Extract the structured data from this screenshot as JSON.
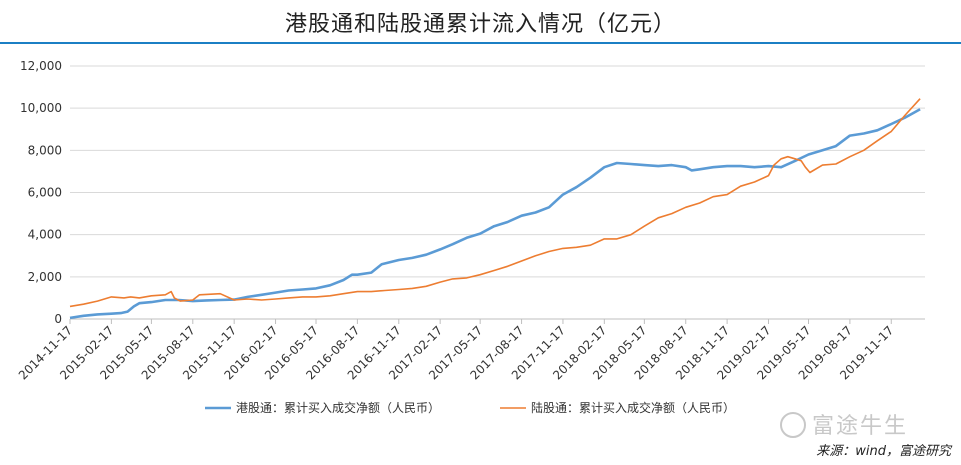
{
  "chart_data": {
    "type": "line",
    "title": "港股通和陆股通累计流入情况（亿元）",
    "ylim": [
      0,
      12000
    ],
    "y_ticks": [
      "0",
      "2,000",
      "4,000",
      "6,000",
      "8,000",
      "10,000",
      "12,000"
    ],
    "x_range": [
      "2014-11-17",
      "2020-01-31"
    ],
    "x_ticks": [
      "2014-11-17",
      "2015-02-17",
      "2015-05-17",
      "2015-08-17",
      "2015-11-17",
      "2016-02-17",
      "2016-05-17",
      "2016-08-17",
      "2016-11-17",
      "2017-02-17",
      "2017-05-17",
      "2017-08-17",
      "2017-11-17",
      "2018-02-17",
      "2018-05-17",
      "2018-08-17",
      "2018-11-17",
      "2019-02-17",
      "2019-05-17",
      "2019-08-17",
      "2019-11-17"
    ],
    "grid": "horizontal",
    "legend_position": "bottom",
    "series": [
      {
        "name": "港股通：累计买入成交净额（人民币）",
        "color": "#5b9bd5",
        "points": [
          [
            "2014-11-17",
            50
          ],
          [
            "2014-12-17",
            150
          ],
          [
            "2015-01-17",
            220
          ],
          [
            "2015-02-17",
            250
          ],
          [
            "2015-03-10",
            280
          ],
          [
            "2015-03-25",
            350
          ],
          [
            "2015-04-08",
            600
          ],
          [
            "2015-04-20",
            750
          ],
          [
            "2015-05-17",
            800
          ],
          [
            "2015-06-17",
            900
          ],
          [
            "2015-07-17",
            900
          ],
          [
            "2015-08-17",
            850
          ],
          [
            "2015-09-17",
            880
          ],
          [
            "2015-10-17",
            900
          ],
          [
            "2015-11-17",
            920
          ],
          [
            "2015-12-17",
            1050
          ],
          [
            "2016-01-17",
            1150
          ],
          [
            "2016-02-17",
            1250
          ],
          [
            "2016-03-17",
            1350
          ],
          [
            "2016-04-17",
            1400
          ],
          [
            "2016-05-17",
            1450
          ],
          [
            "2016-06-17",
            1600
          ],
          [
            "2016-07-17",
            1850
          ],
          [
            "2016-08-05",
            2100
          ],
          [
            "2016-08-17",
            2100
          ],
          [
            "2016-09-17",
            2200
          ],
          [
            "2016-10-10",
            2600
          ],
          [
            "2016-11-17",
            2800
          ],
          [
            "2016-12-17",
            2900
          ],
          [
            "2017-01-17",
            3050
          ],
          [
            "2017-02-17",
            3300
          ],
          [
            "2017-03-17",
            3550
          ],
          [
            "2017-04-17",
            3850
          ],
          [
            "2017-05-17",
            4050
          ],
          [
            "2017-06-17",
            4400
          ],
          [
            "2017-07-17",
            4600
          ],
          [
            "2017-08-17",
            4900
          ],
          [
            "2017-09-17",
            5050
          ],
          [
            "2017-10-17",
            5300
          ],
          [
            "2017-11-17",
            5900
          ],
          [
            "2017-12-17",
            6250
          ],
          [
            "2018-01-17",
            6700
          ],
          [
            "2018-02-17",
            7200
          ],
          [
            "2018-03-17",
            7400
          ],
          [
            "2018-04-17",
            7350
          ],
          [
            "2018-05-17",
            7300
          ],
          [
            "2018-06-17",
            7250
          ],
          [
            "2018-07-17",
            7300
          ],
          [
            "2018-08-17",
            7200
          ],
          [
            "2018-08-30",
            7050
          ],
          [
            "2018-09-17",
            7100
          ],
          [
            "2018-10-17",
            7200
          ],
          [
            "2018-11-17",
            7250
          ],
          [
            "2018-12-17",
            7250
          ],
          [
            "2019-01-17",
            7200
          ],
          [
            "2019-02-17",
            7250
          ],
          [
            "2019-03-17",
            7200
          ],
          [
            "2019-04-17",
            7500
          ],
          [
            "2019-05-17",
            7800
          ],
          [
            "2019-06-17",
            8000
          ],
          [
            "2019-07-17",
            8200
          ],
          [
            "2019-08-17",
            8700
          ],
          [
            "2019-09-17",
            8800
          ],
          [
            "2019-10-17",
            8950
          ],
          [
            "2019-11-17",
            9250
          ],
          [
            "2019-12-17",
            9550
          ],
          [
            "2020-01-20",
            9950
          ]
        ]
      },
      {
        "name": "陆股通：累计买入成交净额（人民币）",
        "color": "#ed7d31",
        "points": [
          [
            "2014-11-17",
            600
          ],
          [
            "2014-12-17",
            700
          ],
          [
            "2015-01-17",
            850
          ],
          [
            "2015-02-17",
            1050
          ],
          [
            "2015-03-17",
            1000
          ],
          [
            "2015-04-01",
            1050
          ],
          [
            "2015-04-20",
            1000
          ],
          [
            "2015-05-17",
            1100
          ],
          [
            "2015-06-17",
            1150
          ],
          [
            "2015-06-30",
            1300
          ],
          [
            "2015-07-07",
            1000
          ],
          [
            "2015-07-20",
            850
          ],
          [
            "2015-08-17",
            900
          ],
          [
            "2015-09-01",
            1150
          ],
          [
            "2015-10-17",
            1200
          ],
          [
            "2015-11-17",
            900
          ],
          [
            "2015-12-17",
            950
          ],
          [
            "2016-01-17",
            900
          ],
          [
            "2016-02-17",
            950
          ],
          [
            "2016-03-17",
            1000
          ],
          [
            "2016-04-17",
            1050
          ],
          [
            "2016-05-17",
            1050
          ],
          [
            "2016-06-17",
            1100
          ],
          [
            "2016-07-17",
            1200
          ],
          [
            "2016-08-17",
            1300
          ],
          [
            "2016-09-17",
            1300
          ],
          [
            "2016-10-17",
            1350
          ],
          [
            "2016-11-17",
            1400
          ],
          [
            "2016-12-17",
            1450
          ],
          [
            "2017-01-17",
            1550
          ],
          [
            "2017-02-17",
            1750
          ],
          [
            "2017-03-17",
            1900
          ],
          [
            "2017-04-17",
            1950
          ],
          [
            "2017-05-17",
            2100
          ],
          [
            "2017-06-17",
            2300
          ],
          [
            "2017-07-17",
            2500
          ],
          [
            "2017-08-17",
            2750
          ],
          [
            "2017-09-17",
            3000
          ],
          [
            "2017-10-17",
            3200
          ],
          [
            "2017-11-17",
            3350
          ],
          [
            "2017-12-17",
            3400
          ],
          [
            "2018-01-17",
            3500
          ],
          [
            "2018-02-17",
            3800
          ],
          [
            "2018-03-17",
            3800
          ],
          [
            "2018-04-17",
            4000
          ],
          [
            "2018-05-17",
            4400
          ],
          [
            "2018-06-17",
            4800
          ],
          [
            "2018-07-17",
            5000
          ],
          [
            "2018-08-17",
            5300
          ],
          [
            "2018-09-17",
            5500
          ],
          [
            "2018-10-17",
            5800
          ],
          [
            "2018-11-17",
            5900
          ],
          [
            "2018-12-17",
            6300
          ],
          [
            "2019-01-17",
            6500
          ],
          [
            "2019-02-17",
            6800
          ],
          [
            "2019-03-01",
            7300
          ],
          [
            "2019-03-17",
            7600
          ],
          [
            "2019-04-01",
            7700
          ],
          [
            "2019-04-17",
            7600
          ],
          [
            "2019-05-01",
            7500
          ],
          [
            "2019-05-10",
            7200
          ],
          [
            "2019-05-20",
            6950
          ],
          [
            "2019-06-17",
            7300
          ],
          [
            "2019-07-17",
            7350
          ],
          [
            "2019-08-17",
            7700
          ],
          [
            "2019-09-17",
            8000
          ],
          [
            "2019-10-17",
            8450
          ],
          [
            "2019-11-17",
            8900
          ],
          [
            "2019-12-17",
            9650
          ],
          [
            "2020-01-20",
            10450
          ]
        ]
      }
    ]
  },
  "footer": {
    "watermark": "富途牛生",
    "source": "来源：wind，富途研究"
  }
}
